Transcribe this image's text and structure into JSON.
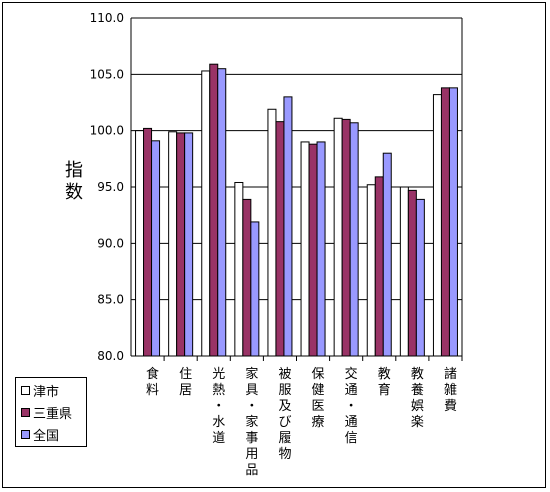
{
  "chart_data": {
    "type": "bar",
    "ylabel": "指数",
    "ylim": [
      80.0,
      110.0
    ],
    "yticks": [
      "80.0",
      "85.0",
      "90.0",
      "95.0",
      "100.0",
      "105.0",
      "110.0"
    ],
    "grid": true,
    "legend_position": "bottom-left",
    "categories": [
      "食料",
      "住居",
      "光熱・水道",
      "家具・家事用品",
      "被服及び履物",
      "保健医療",
      "交通・通信",
      "教育",
      "教養娯楽",
      "諸雑費"
    ],
    "series": [
      {
        "name": "津市",
        "color": "#ffffff",
        "values": [
          100.0,
          99.9,
          105.3,
          95.4,
          101.9,
          99.0,
          101.1,
          95.2,
          95.0,
          103.2
        ]
      },
      {
        "name": "三重県",
        "color": "#993366",
        "values": [
          100.2,
          99.8,
          105.9,
          93.9,
          100.8,
          98.8,
          101.0,
          95.9,
          94.7,
          103.8
        ]
      },
      {
        "name": "全国",
        "color": "#9999ff",
        "values": [
          99.1,
          99.8,
          105.5,
          91.9,
          103.0,
          99.0,
          100.7,
          98.0,
          93.9,
          103.8
        ]
      }
    ]
  }
}
